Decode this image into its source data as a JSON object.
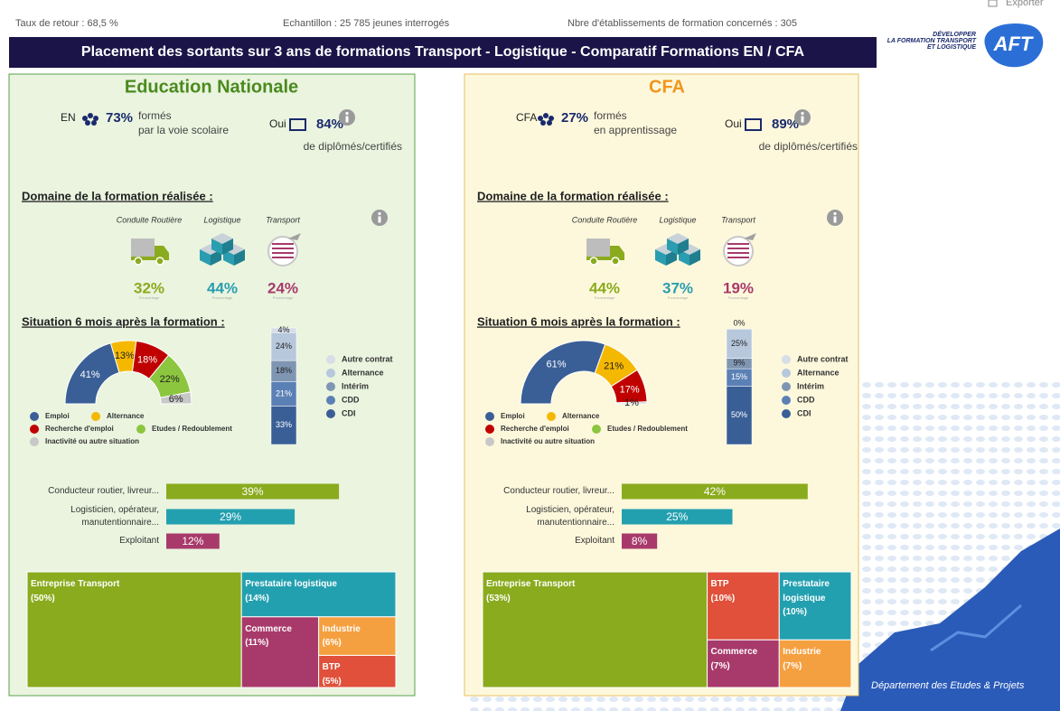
{
  "header": {
    "return_rate": "Taux de retour : 68,5 %",
    "sample": "Echantillon : 25 785 jeunes interrogés",
    "establishments": "Nbre d'établissements de formation concernés : 305",
    "export": "Exporter",
    "title": "Placement des sortants sur 3 ans de formations Transport - Logistique - Comparatif  Formations EN / CFA",
    "logo_lines": [
      "DÉVELOPPER",
      "LA FORMATION TRANSPORT",
      "ET LOGISTIQUE"
    ],
    "logo": "AFT"
  },
  "panels": [
    {
      "title": "Education Nationale",
      "who": "EN",
      "share": "73%",
      "share_text": [
        "formés",
        "par la voie scolaire"
      ],
      "diploma_label": "Oui",
      "diploma": "84%",
      "diploma_text": "de diplômés/certifiés",
      "domain_title": "Domaine de la formation réalisée :",
      "domains": [
        {
          "label": "Conduite Routière",
          "value": "32%",
          "caption": "Pourcentage"
        },
        {
          "label": "Logistique",
          "value": "44%",
          "caption": "Pourcentage"
        },
        {
          "label": "Transport",
          "value": "24%",
          "caption": "Pourcentage"
        }
      ],
      "situation_title": "Situation 6 mois après la formation :"
    },
    {
      "title": "CFA",
      "who": "CFA",
      "share": "27%",
      "share_text": [
        "formés",
        "en apprentissage"
      ],
      "diploma_label": "Oui",
      "diploma": "89%",
      "diploma_text": "de diplômés/certifiés",
      "domain_title": "Domaine de la formation réalisée :",
      "domains": [
        {
          "label": "Conduite Routière",
          "value": "44%",
          "caption": "Pourcentage"
        },
        {
          "label": "Logistique",
          "value": "37%",
          "caption": "Pourcentage"
        },
        {
          "label": "Transport",
          "value": "19%",
          "caption": "Pourcentage"
        }
      ],
      "situation_title": "Situation 6 mois après la formation :"
    }
  ],
  "chart_data": [
    {
      "type": "pie",
      "half": true,
      "categories": [
        "Emploi",
        "Alternance",
        "Recherche d'emploi",
        "Etudes / Redoublement",
        "Inactivité ou autre situation"
      ],
      "values": [
        41,
        13,
        18,
        22,
        6
      ],
      "value_labels": [
        "41%",
        "13%",
        "18%",
        "22%",
        "6%"
      ],
      "colors": [
        "#3a5f96",
        "#f5b800",
        "#c00000",
        "#8cc63f",
        "#c8c8c8"
      ]
    },
    {
      "type": "stacked_bar",
      "categories": [
        null
      ],
      "ylim": [
        0,
        100
      ],
      "series": [
        {
          "name": "CDI",
          "color": "#3a5f96",
          "values": [
            33
          ],
          "value_labels": [
            "33%"
          ]
        },
        {
          "name": "CDD",
          "color": "#5b80b6",
          "values": [
            21
          ],
          "value_labels": [
            "21%"
          ]
        },
        {
          "name": "Intérim",
          "color": "#7f96b3",
          "values": [
            18
          ],
          "value_labels": [
            "18%"
          ]
        },
        {
          "name": "Alternance",
          "color": "#b7c7dc",
          "values": [
            24
          ],
          "value_labels": [
            "24%"
          ]
        },
        {
          "name": "Autre contrat",
          "color": "#d6dee8",
          "values": [
            4
          ],
          "value_labels": [
            "4%"
          ]
        }
      ]
    },
    {
      "type": "hbar",
      "categories": [
        "Conducteur routier, livreur...",
        "Logisticien, opérateur, manutentionnaire...",
        "Exploitant"
      ],
      "values": [
        39,
        29,
        12
      ],
      "value_labels": [
        "39%",
        "29%",
        "12%"
      ],
      "colors": [
        "#8aab1e",
        "#23a0b0",
        "#a83a6b"
      ],
      "xlim": [
        0,
        50
      ]
    },
    {
      "type": "treemap",
      "categories": [
        "Entreprise Transport",
        "Prestataire logistique",
        "Commerce",
        "Industrie",
        "BTP"
      ],
      "values": [
        50,
        14,
        11,
        6,
        5
      ],
      "value_labels": [
        "(50%)",
        "(14%)",
        "(11%)",
        "(6%)",
        "(5%)"
      ],
      "colors": [
        "#8aab1e",
        "#23a0b0",
        "#a83a6b",
        "#f5a040",
        "#e0503a"
      ]
    },
    {
      "type": "pie",
      "half": true,
      "categories": [
        "Emploi",
        "Alternance",
        "Recherche d'emploi",
        "Etudes / Redoublement",
        "Inactivité ou autre situation"
      ],
      "values": [
        61,
        21,
        17,
        null,
        1
      ],
      "value_labels": [
        "61%",
        "21%",
        "17%",
        null,
        "1%"
      ],
      "colors": [
        "#3a5f96",
        "#f5b800",
        "#c00000",
        "#8cc63f",
        "#c8c8c8"
      ]
    },
    {
      "type": "stacked_bar",
      "categories": [
        null
      ],
      "ylim": [
        0,
        100
      ],
      "series": [
        {
          "name": "CDI",
          "color": "#3a5f96",
          "values": [
            50
          ],
          "value_labels": [
            "50%"
          ]
        },
        {
          "name": "CDD",
          "color": "#5b80b6",
          "values": [
            15
          ],
          "value_labels": [
            "15%"
          ]
        },
        {
          "name": "Intérim",
          "color": "#7f96b3",
          "values": [
            9
          ],
          "value_labels": [
            "9%"
          ]
        },
        {
          "name": "Alternance",
          "color": "#b7c7dc",
          "values": [
            25
          ],
          "value_labels": [
            "25%"
          ]
        },
        {
          "name": "Autre contrat",
          "color": "#d6dee8",
          "values": [
            0
          ],
          "value_labels": [
            "0%"
          ]
        }
      ]
    },
    {
      "type": "hbar",
      "categories": [
        "Conducteur routier, livreur...",
        "Logisticien, opérateur, manutentionnaire...",
        "Exploitant"
      ],
      "values": [
        42,
        25,
        8
      ],
      "value_labels": [
        "42%",
        "25%",
        "8%"
      ],
      "colors": [
        "#8aab1e",
        "#23a0b0",
        "#a83a6b"
      ],
      "xlim": [
        0,
        50
      ]
    },
    {
      "type": "treemap",
      "categories": [
        "Entreprise Transport",
        "BTP",
        "Prestataire logistique",
        "Commerce",
        "Industrie"
      ],
      "values": [
        53,
        10,
        10,
        7,
        7
      ],
      "value_labels": [
        "(53%)",
        "(10%)",
        "(10%)",
        "(7%)",
        "(7%)"
      ],
      "colors": [
        "#8aab1e",
        "#e0503a",
        "#23a0b0",
        "#a83a6b",
        "#f5a040"
      ]
    }
  ],
  "footer": "Département des Etudes & Projets"
}
